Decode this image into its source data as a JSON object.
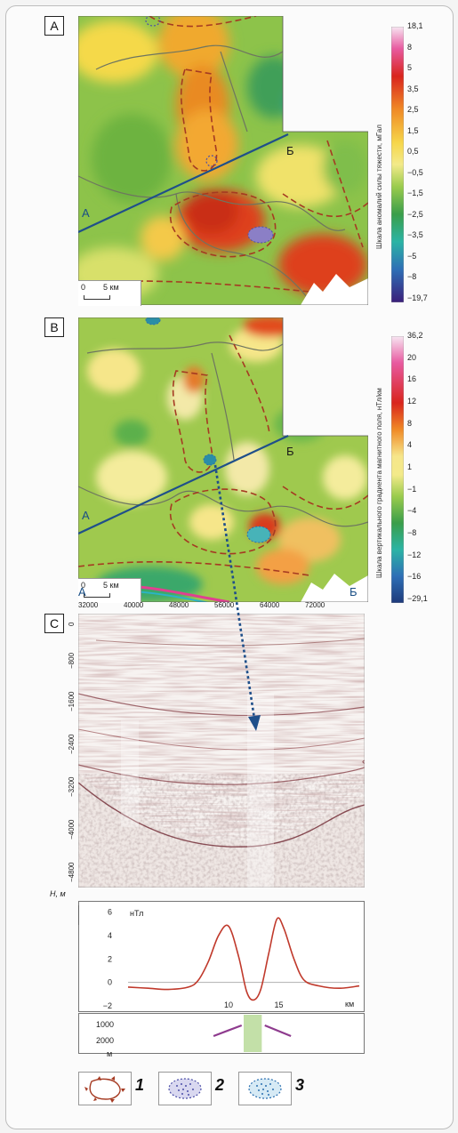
{
  "panels": {
    "A": {
      "label": "A",
      "profile_start": "А",
      "profile_end": "Б",
      "scale_zero": "0",
      "scale_text": "5 км",
      "colorbar_title": "Шкала аномалий силы тяжести, мГал",
      "colorbar_ticks": [
        "18,1",
        "8",
        "5",
        "3,5",
        "2,5",
        "1,5",
        "0,5",
        "−0,5",
        "−1,5",
        "−2,5",
        "−3,5",
        "−5",
        "−8",
        "−19,7"
      ]
    },
    "B": {
      "label": "B",
      "profile_start": "А",
      "profile_end": "Б",
      "scale_zero": "0",
      "scale_text": "5 км",
      "colorbar_title": "Шкала вертикального градиента магнитного поля, нТл/км",
      "colorbar_ticks": [
        "36,2",
        "20",
        "16",
        "12",
        "8",
        "4",
        "1",
        "−1",
        "−4",
        "−8",
        "−12",
        "−16",
        "−29,1"
      ]
    },
    "C": {
      "label": "C",
      "end_left": "А",
      "end_right": "Б",
      "x_ticks": [
        "32000",
        "40000",
        "48000",
        "56000",
        "64000",
        "72000"
      ],
      "depth_ticks": [
        "0",
        "−800",
        "−1600",
        "−2400",
        "−3200",
        "−4000",
        "−4800"
      ],
      "depth_axis_label": "H, м"
    },
    "D": {
      "label": "D",
      "unit_top": "нТл",
      "y_ticks": [
        "6",
        "4",
        "2",
        "0",
        "−2"
      ],
      "x_ticks": [
        "10",
        "15"
      ],
      "x_unit": "км",
      "depth_ticks": [
        "1000",
        "2000"
      ],
      "depth_unit": "м"
    }
  },
  "legend": [
    {
      "number": "1",
      "icon": "fault-boundary-icon"
    },
    {
      "number": "2",
      "icon": "purple-dotted-anomaly-icon"
    },
    {
      "number": "3",
      "icon": "blue-dotted-anomaly-icon"
    }
  ],
  "chart_data": {
    "type": "line",
    "title": "",
    "xlabel": "км",
    "ylabel": "нТл",
    "x": [
      0,
      2,
      4,
      6,
      7,
      8,
      9,
      10,
      11,
      11.8,
      12.5,
      13.2,
      14,
      14.8,
      15.5,
      16.5,
      17.5,
      19,
      21,
      23
    ],
    "y": [
      -0.4,
      -0.5,
      -0.6,
      -0.4,
      0.2,
      1.8,
      4.0,
      4.8,
      2.2,
      -0.8,
      -1.5,
      -0.6,
      2.5,
      5.4,
      4.6,
      2.0,
      0.2,
      -0.3,
      -0.5,
      -0.3
    ],
    "xlim": [
      0,
      23
    ],
    "ylim": [
      -2,
      6.5
    ],
    "colors": {
      "line": "#c0392b",
      "zero_line": "#b0b0b0",
      "body": "#c3e0a8",
      "dikes": "#8e3b8e"
    }
  }
}
